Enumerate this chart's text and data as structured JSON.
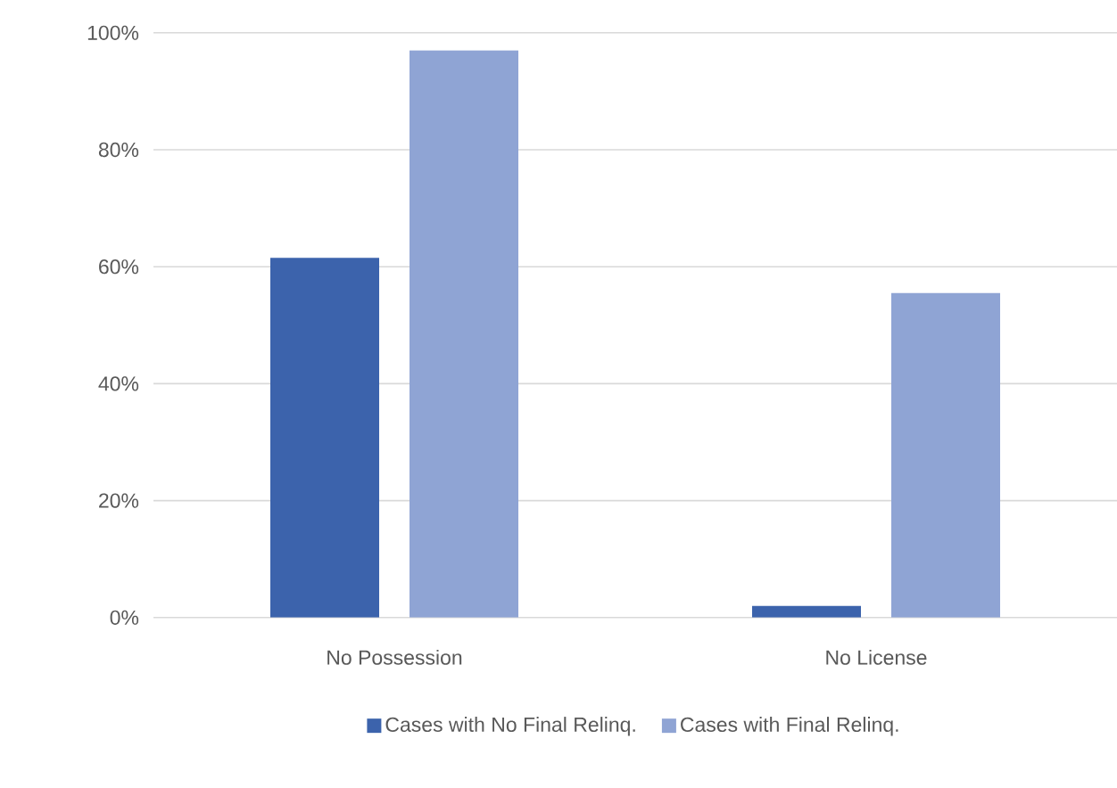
{
  "chart_data": {
    "type": "bar",
    "categories": [
      "No Possession",
      "No License"
    ],
    "series": [
      {
        "name": "Cases with No Final Relinq.",
        "color": "#3c63ac",
        "values": [
          61.5,
          2
        ]
      },
      {
        "name": "Cases with Final Relinq.",
        "color": "#8fa4d4",
        "values": [
          97,
          55.5
        ]
      }
    ],
    "ylim": [
      0,
      100
    ],
    "yticks": [
      {
        "value": 0,
        "label": "0%"
      },
      {
        "value": 20,
        "label": "20%"
      },
      {
        "value": 40,
        "label": "40%"
      },
      {
        "value": 60,
        "label": "60%"
      },
      {
        "value": 80,
        "label": "80%"
      },
      {
        "value": 100,
        "label": "100%"
      }
    ],
    "grid": "y",
    "legend": "bottom"
  }
}
